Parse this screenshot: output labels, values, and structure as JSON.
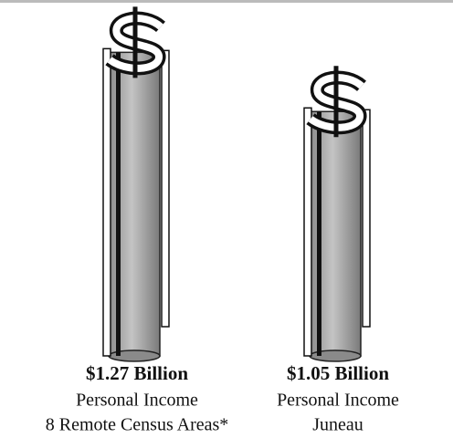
{
  "chart_data": {
    "type": "pictograph",
    "categories": [
      "8 Remote Census Areas*",
      "Juneau"
    ],
    "measure": "Personal Income",
    "values": [
      1.27,
      1.05
    ],
    "value_labels": [
      "$1.27 Billion",
      "$1.05 Billion"
    ],
    "color": "#a9a9a9"
  }
}
